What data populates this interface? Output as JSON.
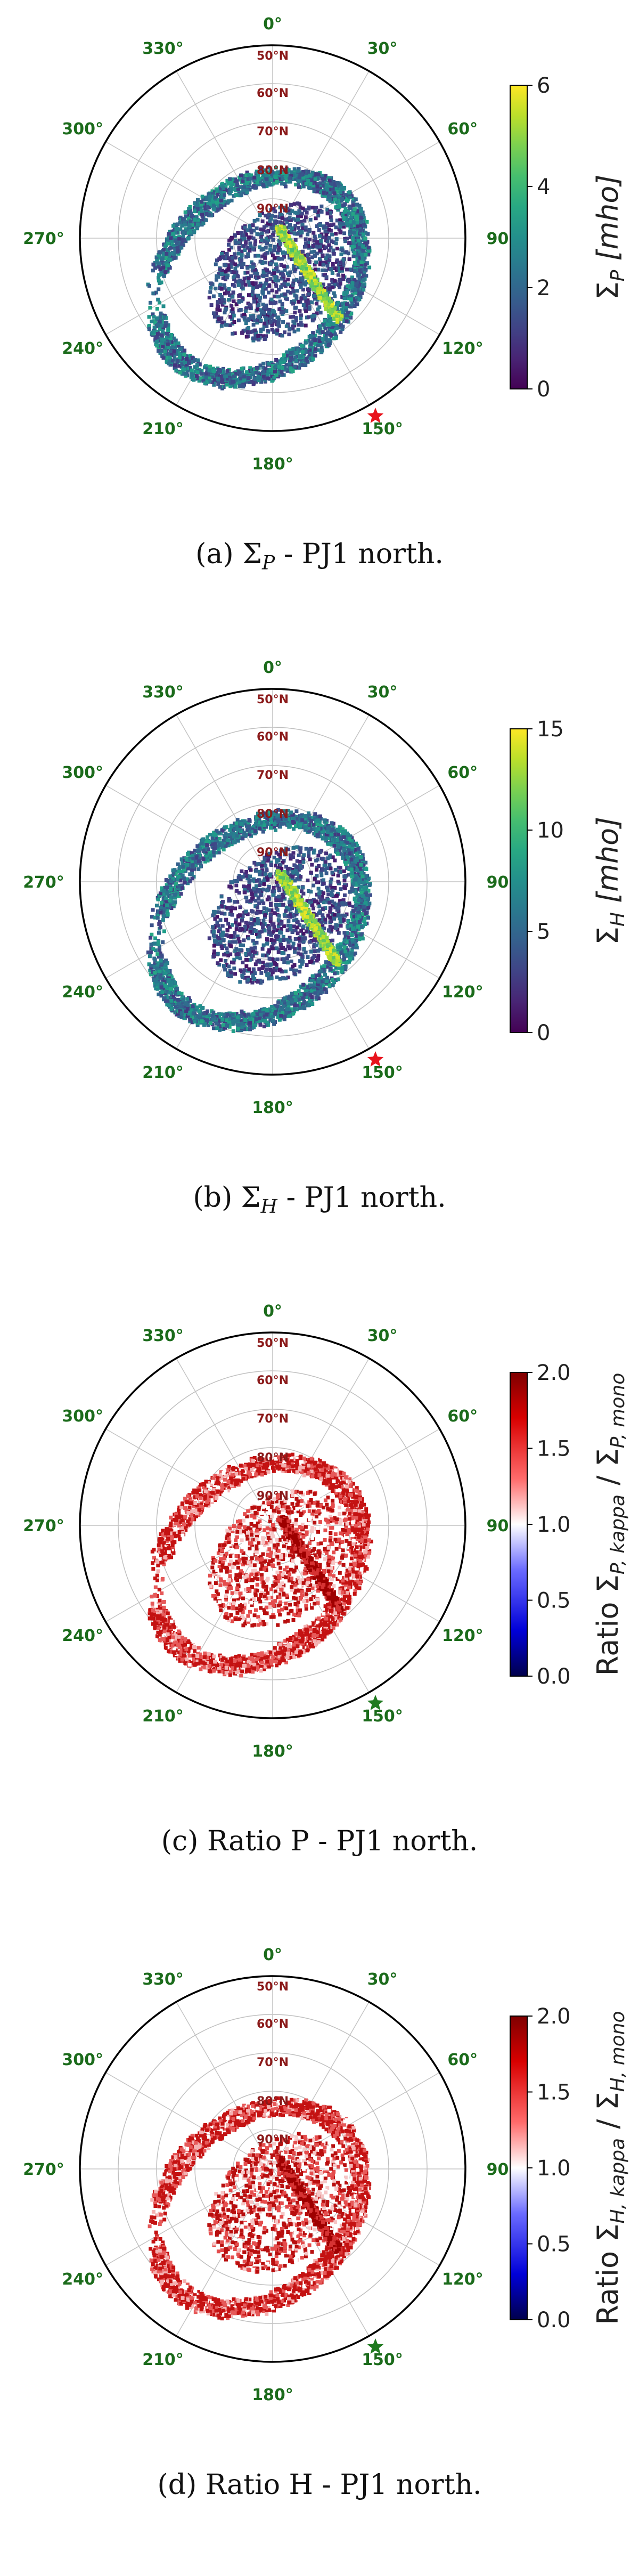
{
  "figure": {
    "panels": [
      {
        "id": "a",
        "caption_prefix": "(a)",
        "caption_symbol": "Σ",
        "caption_sub": "P",
        "caption_rest": " - PJ1 north.",
        "colorbar": {
          "type": "viridis",
          "ticks": [
            "0",
            "2",
            "4",
            "6"
          ],
          "label_symbol": "Σ",
          "label_sub": "P",
          "label_unit": " [mho]"
        },
        "marker_color": "#e8141d"
      },
      {
        "id": "b",
        "caption_prefix": "(b)",
        "caption_symbol": "Σ",
        "caption_sub": "H",
        "caption_rest": " - PJ1 north.",
        "colorbar": {
          "type": "viridis",
          "ticks": [
            "0",
            "5",
            "10",
            "15"
          ],
          "label_symbol": "Σ",
          "label_sub": "H",
          "label_unit": " [mho]"
        },
        "marker_color": "#e8141d"
      },
      {
        "id": "c",
        "caption_prefix": "(c)",
        "caption_symbol": "",
        "caption_sub": "",
        "caption_rest": "Ratio P - PJ1 north.",
        "colorbar": {
          "type": "seismic",
          "ticks": [
            "0.0",
            "0.5",
            "1.0",
            "1.5",
            "2.0"
          ],
          "label_prefix": "Ratio ",
          "label_symbol": "Σ",
          "label_sub1": "P, kappa",
          "label_mid": " / ",
          "label_sub2": "P, mono"
        },
        "marker_color": "#1f7a1f"
      },
      {
        "id": "d",
        "caption_prefix": "(d)",
        "caption_symbol": "",
        "caption_sub": "",
        "caption_rest": "Ratio H - PJ1 north.",
        "colorbar": {
          "type": "seismic",
          "ticks": [
            "0.0",
            "0.5",
            "1.0",
            "1.5",
            "2.0"
          ],
          "label_prefix": "Ratio ",
          "label_symbol": "Σ",
          "label_sub1": "H, kappa",
          "label_mid": " / ",
          "label_sub2": "H, mono"
        },
        "marker_color": "#1f7a1f"
      }
    ],
    "polar_axes": {
      "longitude_labels": [
        "0°",
        "30°",
        "60°",
        "90°",
        "120°",
        "150°",
        "180°",
        "210°",
        "240°",
        "270°",
        "300°",
        "330°"
      ],
      "latitude_labels": [
        "50°N",
        "60°N",
        "70°N",
        "80°N",
        "90°N"
      ]
    },
    "colors": {
      "longitude_label": "#1b6b1b",
      "latitude_label": "#8b1a1a"
    }
  }
}
